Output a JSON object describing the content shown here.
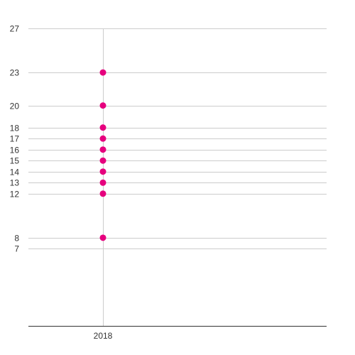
{
  "chart_data": {
    "type": "scatter",
    "categories": [
      "2018"
    ],
    "series": [
      {
        "values": [
          23,
          20,
          18,
          17,
          16,
          15,
          14,
          13,
          12,
          8
        ]
      }
    ],
    "y_ticks": [
      7,
      8,
      12,
      13,
      14,
      15,
      16,
      17,
      18,
      20,
      23,
      27
    ],
    "ylim": [
      0,
      27
    ],
    "grid": true,
    "colors": {
      "point": "#e6007e",
      "grid": "#cccccc",
      "axis": "#333333",
      "text": "#333333"
    }
  }
}
